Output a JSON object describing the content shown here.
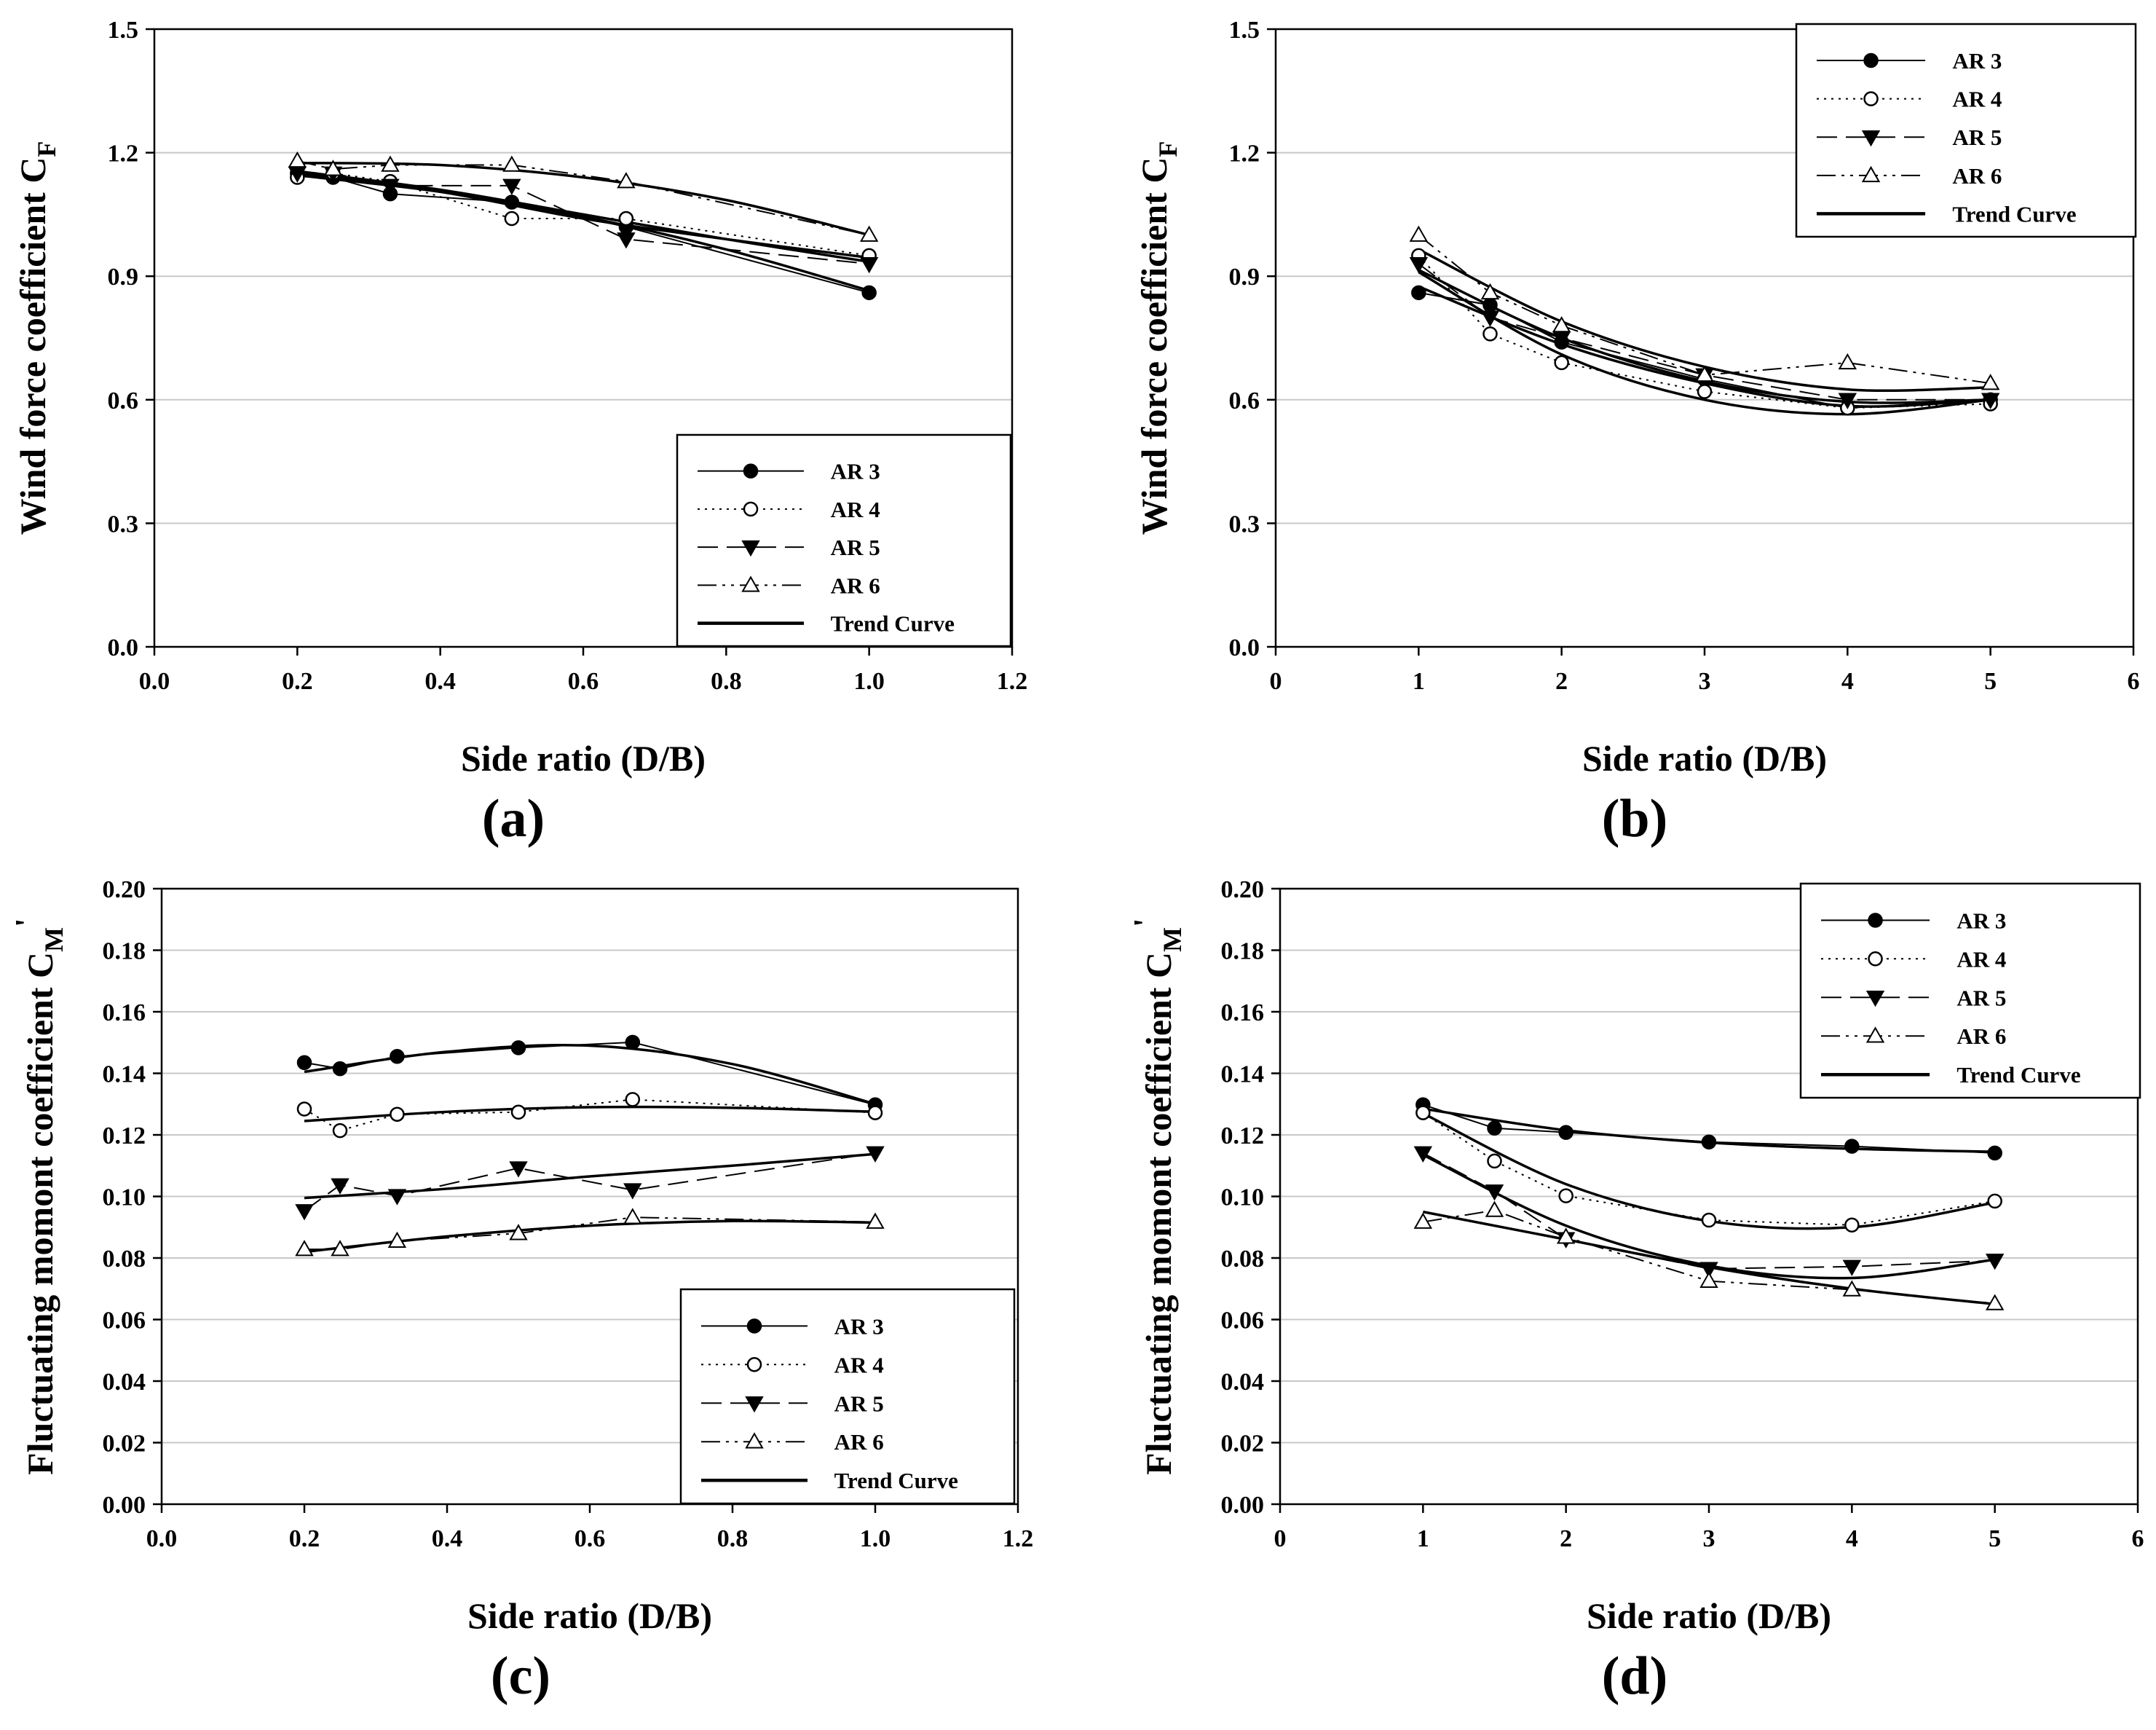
{
  "chart_data": [
    {
      "type": "line",
      "panel_label": "(a)",
      "xlabel": "Side ratio (D/B)",
      "ylabel": "Wind force coefficient C",
      "ylabel_sub": "F",
      "ylabel_prime": "",
      "xlim": [
        0.0,
        1.2
      ],
      "ylim": [
        0.0,
        1.5
      ],
      "xticks": [
        "0.0",
        "0.2",
        "0.4",
        "0.6",
        "0.8",
        "1.0",
        "1.2"
      ],
      "yticks": [
        "0.0",
        "0.3",
        "0.6",
        "0.9",
        "1.2",
        "1.5"
      ],
      "grid": "horizontal",
      "legend_position": "bottom-right",
      "series": [
        {
          "name": "AR 3",
          "x": [
            0.2,
            0.25,
            0.33,
            0.5,
            0.66,
            1.0
          ],
          "y": [
            1.15,
            1.14,
            1.1,
            1.08,
            1.02,
            0.86
          ]
        },
        {
          "name": "AR 4",
          "x": [
            0.2,
            0.25,
            0.33,
            0.5,
            0.66,
            1.0
          ],
          "y": [
            1.14,
            1.15,
            1.13,
            1.04,
            1.04,
            0.95
          ]
        },
        {
          "name": "AR 5",
          "x": [
            0.2,
            0.25,
            0.33,
            0.5,
            0.66,
            1.0
          ],
          "y": [
            1.15,
            1.15,
            1.12,
            1.12,
            0.99,
            0.93
          ]
        },
        {
          "name": "AR 6",
          "x": [
            0.2,
            0.25,
            0.33,
            0.5,
            0.66,
            1.0
          ],
          "y": [
            1.18,
            1.16,
            1.17,
            1.17,
            1.13,
            1.0
          ]
        },
        {
          "name": "Trend Curve",
          "x": [],
          "y": []
        }
      ],
      "trend_curves": [
        {
          "x": [
            0.2,
            0.4,
            0.6,
            0.8,
            1.0
          ],
          "y": [
            1.145,
            1.105,
            1.045,
            0.965,
            0.865
          ]
        },
        {
          "x": [
            0.2,
            0.4,
            0.6,
            0.8,
            1.0
          ],
          "y": [
            1.15,
            1.105,
            1.04,
            0.99,
            0.945
          ]
        },
        {
          "x": [
            0.2,
            0.4,
            0.6,
            0.8,
            1.0
          ],
          "y": [
            1.155,
            1.11,
            1.05,
            0.99,
            0.935
          ]
        },
        {
          "x": [
            0.2,
            0.4,
            0.6,
            0.8,
            1.0
          ],
          "y": [
            1.175,
            1.17,
            1.14,
            1.085,
            1.0
          ]
        }
      ]
    },
    {
      "type": "line",
      "panel_label": "(b)",
      "xlabel": "Side ratio (D/B)",
      "ylabel": "Wind force coefficient C",
      "ylabel_sub": "F",
      "ylabel_prime": "",
      "xlim": [
        0,
        6
      ],
      "ylim": [
        0.0,
        1.5
      ],
      "xticks": [
        "0",
        "1",
        "2",
        "3",
        "4",
        "5",
        "6"
      ],
      "yticks": [
        "0.0",
        "0.3",
        "0.6",
        "0.9",
        "1.2",
        "1.5"
      ],
      "grid": "horizontal",
      "legend_position": "top-right",
      "series": [
        {
          "name": "AR 3",
          "x": [
            1,
            1.5,
            2,
            3,
            4,
            5
          ],
          "y": [
            0.86,
            0.83,
            0.74,
            0.65,
            0.58,
            0.6
          ]
        },
        {
          "name": "AR 4",
          "x": [
            1,
            1.5,
            2,
            3,
            4,
            5
          ],
          "y": [
            0.95,
            0.76,
            0.69,
            0.62,
            0.58,
            0.59
          ]
        },
        {
          "name": "AR 5",
          "x": [
            1,
            1.5,
            2,
            3,
            4,
            5
          ],
          "y": [
            0.93,
            0.8,
            0.75,
            0.66,
            0.6,
            0.6
          ]
        },
        {
          "name": "AR 6",
          "x": [
            1,
            1.5,
            2,
            3,
            4,
            5
          ],
          "y": [
            1.0,
            0.86,
            0.78,
            0.66,
            0.69,
            0.64
          ]
        },
        {
          "name": "Trend Curve",
          "x": [],
          "y": []
        }
      ],
      "trend_curves": [
        {
          "x": [
            1,
            2,
            3,
            4,
            5
          ],
          "y": [
            0.875,
            0.735,
            0.64,
            0.585,
            0.6
          ]
        },
        {
          "x": [
            1,
            2,
            3,
            4,
            5
          ],
          "y": [
            0.91,
            0.71,
            0.6,
            0.565,
            0.6
          ]
        },
        {
          "x": [
            1,
            2,
            3,
            4,
            5
          ],
          "y": [
            0.915,
            0.75,
            0.645,
            0.595,
            0.6
          ]
        },
        {
          "x": [
            1,
            2,
            3,
            4,
            5
          ],
          "y": [
            0.965,
            0.79,
            0.68,
            0.625,
            0.63
          ]
        }
      ]
    },
    {
      "type": "line",
      "panel_label": "(c)",
      "xlabel": "Side ratio (D/B)",
      "ylabel": "Fluctuating momont coefficient C",
      "ylabel_sub": "M",
      "ylabel_prime": "'",
      "xlim": [
        0.0,
        1.2
      ],
      "ylim": [
        0.0,
        0.2
      ],
      "xticks": [
        "0.0",
        "0.2",
        "0.4",
        "0.6",
        "0.8",
        "1.0",
        "1.2"
      ],
      "yticks": [
        "0.00",
        "0.02",
        "0.04",
        "0.06",
        "0.08",
        "0.10",
        "0.12",
        "0.14",
        "0.16",
        "0.18",
        "0.20"
      ],
      "grid": "horizontal",
      "legend_position": "bottom-right",
      "series": [
        {
          "name": "AR 3",
          "x": [
            0.2,
            0.25,
            0.33,
            0.5,
            0.66,
            1.0
          ],
          "y": [
            0.1435,
            0.1415,
            0.1455,
            0.1483,
            0.1501,
            0.1298
          ]
        },
        {
          "name": "AR 4",
          "x": [
            0.2,
            0.25,
            0.33,
            0.5,
            0.66,
            1.0
          ],
          "y": [
            0.1284,
            0.1214,
            0.1267,
            0.1274,
            0.1315,
            0.1272
          ]
        },
        {
          "name": "AR 5",
          "x": [
            0.2,
            0.25,
            0.33,
            0.5,
            0.66,
            1.0
          ],
          "y": [
            0.0953,
            0.1037,
            0.1002,
            0.1092,
            0.1021,
            0.1141
          ]
        },
        {
          "name": "AR 6",
          "x": [
            0.2,
            0.25,
            0.33,
            0.5,
            0.66,
            1.0
          ],
          "y": [
            0.0828,
            0.0828,
            0.0855,
            0.088,
            0.0932,
            0.0917
          ]
        },
        {
          "name": "Trend Curve",
          "x": [],
          "y": []
        }
      ],
      "trend_curves": [
        {
          "x": [
            0.2,
            0.4,
            0.6,
            0.8,
            1.0
          ],
          "y": [
            0.1405,
            0.147,
            0.149,
            0.143,
            0.13
          ]
        },
        {
          "x": [
            0.2,
            0.4,
            0.6,
            0.8,
            1.0
          ],
          "y": [
            0.1245,
            0.1275,
            0.129,
            0.1288,
            0.1275
          ]
        },
        {
          "x": [
            0.2,
            0.4,
            0.6,
            0.8,
            1.0
          ],
          "y": [
            0.0995,
            0.1025,
            0.1065,
            0.11,
            0.1138
          ]
        },
        {
          "x": [
            0.2,
            0.4,
            0.6,
            0.8,
            1.0
          ],
          "y": [
            0.082,
            0.087,
            0.0905,
            0.092,
            0.0915
          ]
        }
      ]
    },
    {
      "type": "line",
      "panel_label": "(d)",
      "xlabel": "Side ratio (D/B)",
      "ylabel": "Fluctuating momont coefficient C",
      "ylabel_sub": "M",
      "ylabel_prime": "'",
      "xlim": [
        0,
        6
      ],
      "ylim": [
        0.0,
        0.2
      ],
      "xticks": [
        "0",
        "1",
        "2",
        "3",
        "4",
        "5",
        "6"
      ],
      "yticks": [
        "0.00",
        "0.02",
        "0.04",
        "0.06",
        "0.08",
        "0.10",
        "0.12",
        "0.14",
        "0.16",
        "0.18",
        "0.20"
      ],
      "grid": "horizontal",
      "legend_position": "top-right",
      "series": [
        {
          "name": "AR 3",
          "x": [
            1,
            1.5,
            2,
            3,
            4,
            5
          ],
          "y": [
            0.1298,
            0.1222,
            0.1208,
            0.1177,
            0.1163,
            0.1141
          ]
        },
        {
          "name": "AR 4",
          "x": [
            1,
            1.5,
            2,
            3,
            4,
            5
          ],
          "y": [
            0.1272,
            0.1115,
            0.1002,
            0.0923,
            0.0907,
            0.0985
          ]
        },
        {
          "name": "AR 5",
          "x": [
            1,
            1.5,
            2,
            3,
            4,
            5
          ],
          "y": [
            0.1141,
            0.1017,
            0.0862,
            0.0765,
            0.0772,
            0.0792
          ]
        },
        {
          "name": "AR 6",
          "x": [
            1,
            1.5,
            2,
            3,
            4,
            5
          ],
          "y": [
            0.0917,
            0.0955,
            0.0868,
            0.0725,
            0.0697,
            0.0652
          ]
        },
        {
          "name": "Trend Curve",
          "x": [],
          "y": []
        }
      ],
      "trend_curves": [
        {
          "x": [
            1,
            2,
            3,
            4,
            5
          ],
          "y": [
            0.1285,
            0.1215,
            0.1175,
            0.1155,
            0.1145
          ]
        },
        {
          "x": [
            1,
            2,
            3,
            4,
            5
          ],
          "y": [
            0.127,
            0.104,
            0.092,
            0.09,
            0.098
          ]
        },
        {
          "x": [
            1,
            2,
            3,
            4,
            5
          ],
          "y": [
            0.1135,
            0.0905,
            0.0775,
            0.0735,
            0.0795
          ]
        },
        {
          "x": [
            1,
            2,
            3,
            4,
            5
          ],
          "y": [
            0.095,
            0.086,
            0.077,
            0.07,
            0.065
          ]
        }
      ]
    }
  ]
}
